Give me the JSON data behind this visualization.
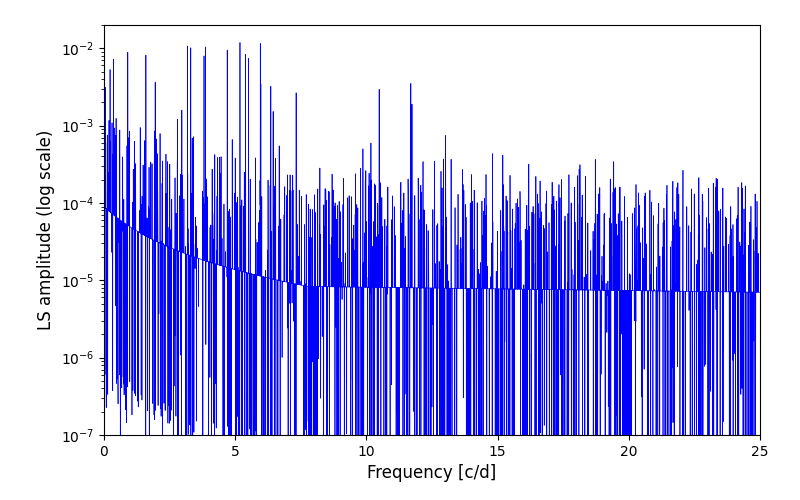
{
  "title": "",
  "xlabel": "Frequency [c/d]",
  "ylabel": "LS amplitude (log scale)",
  "xlim": [
    0,
    25
  ],
  "ylim": [
    1e-07,
    0.02
  ],
  "line_color": "blue",
  "line_width": 0.5,
  "background_color": "#ffffff",
  "seed": 7,
  "n_points": 5000,
  "freq_max": 25.0,
  "figsize": [
    8.0,
    5.0
  ],
  "dpi": 100
}
